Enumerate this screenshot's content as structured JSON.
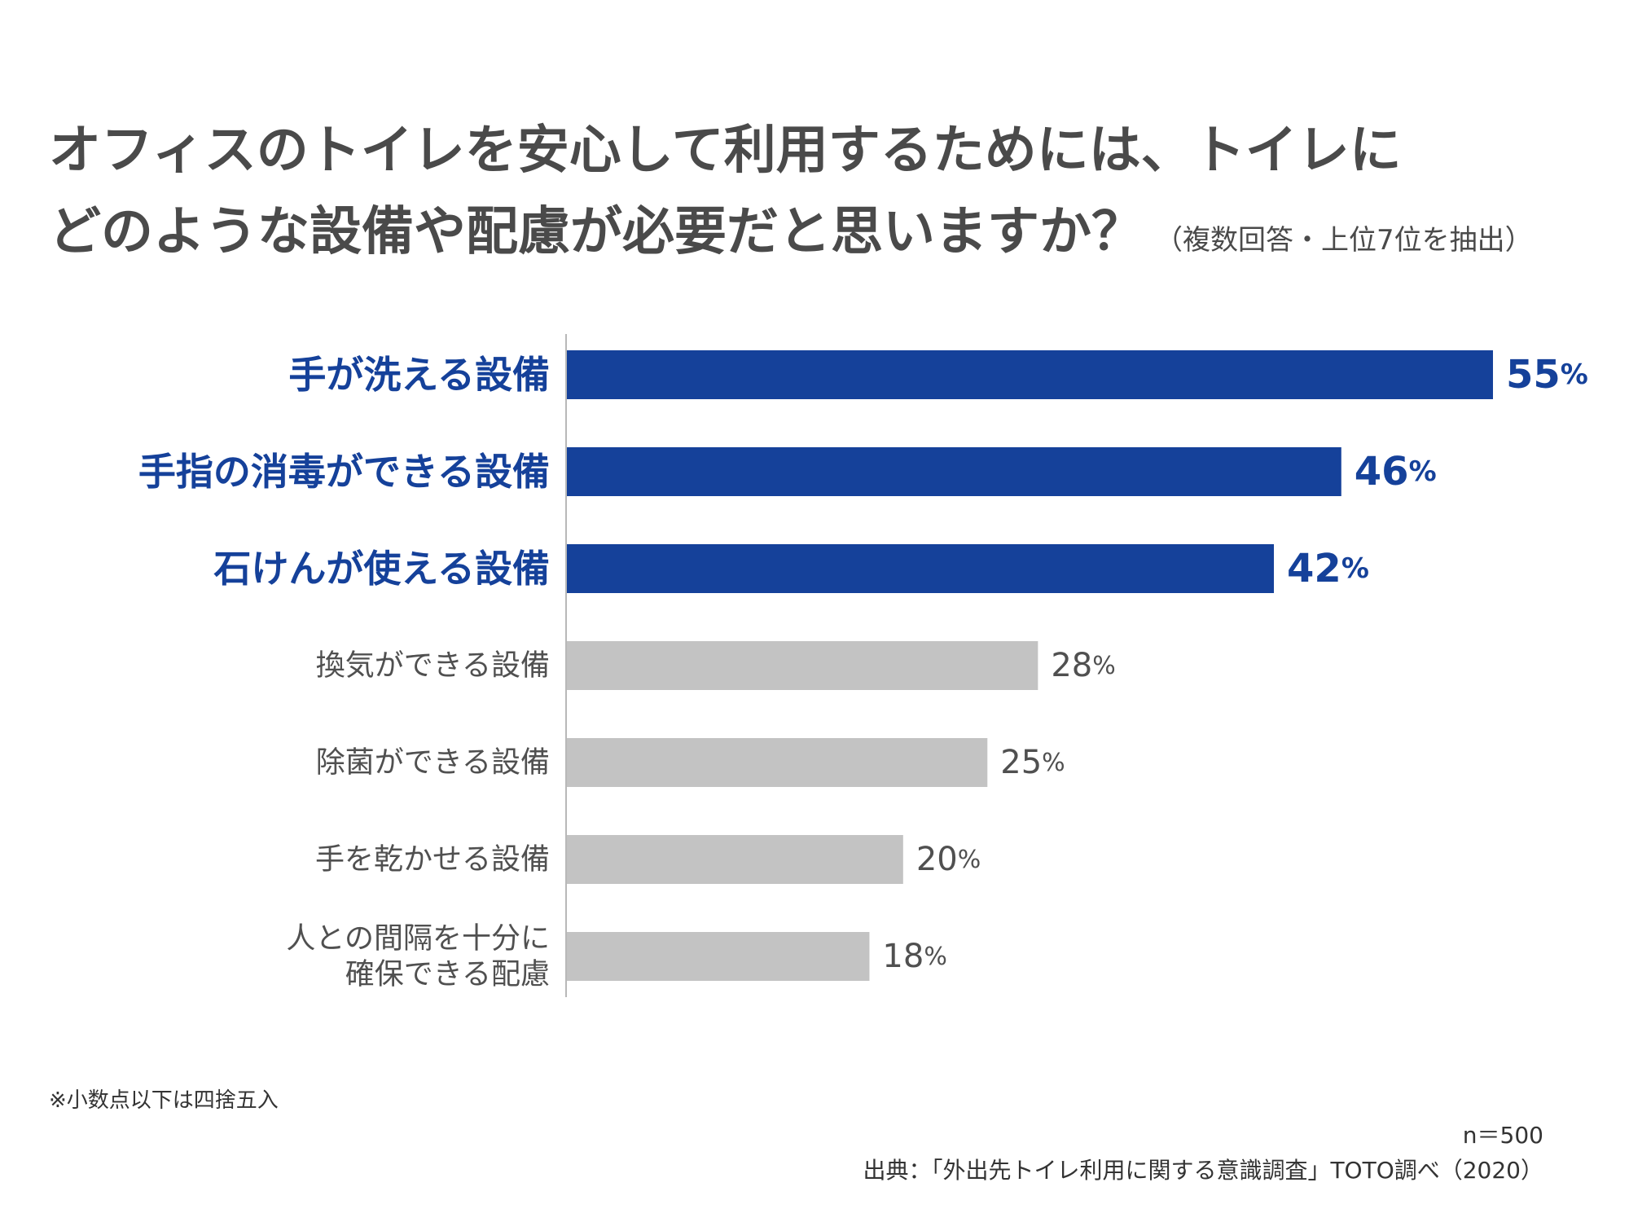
{
  "title": {
    "line1": "オフィスのトイレを安心して利用するためには、トイレに",
    "line2": "どのような設備や配慮が必要だと思いますか？",
    "subtitle": "（複数回答・上位7位を抽出）"
  },
  "colors": {
    "highlight": "#15419a",
    "other": "#c3c3c3",
    "label_other": "#505050",
    "axis": "#b8b8b8"
  },
  "chart_data": {
    "type": "bar",
    "orientation": "horizontal",
    "categories": [
      [
        "手が洗える設備"
      ],
      [
        "手指の消毒ができる設備"
      ],
      [
        "石けんが使える設備"
      ],
      [
        "換気ができる設備"
      ],
      [
        "除菌ができる設備"
      ],
      [
        "手を乾かせる設備"
      ],
      [
        "人との間隔を十分に",
        "確保できる配慮"
      ]
    ],
    "values": [
      55,
      46,
      42,
      28,
      25,
      20,
      18
    ],
    "highlighted": [
      true,
      true,
      true,
      false,
      false,
      false,
      false
    ],
    "unit": "%",
    "xlim": [
      0,
      55
    ]
  },
  "footer": {
    "note": "※小数点以下は四捨五入",
    "n": "n＝500",
    "source": "出典：「外出先トイレ利用に関する意識調査」TOTO調べ（2020）"
  }
}
